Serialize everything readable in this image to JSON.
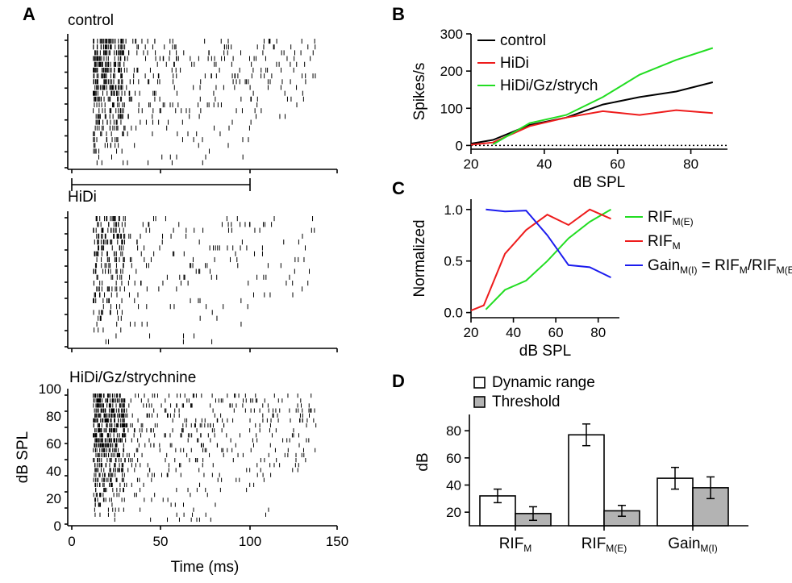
{
  "figure": {
    "panels": {
      "A": {
        "letter": "A"
      },
      "B": {
        "letter": "B"
      },
      "C": {
        "letter": "C"
      },
      "D": {
        "letter": "D"
      }
    },
    "rasters": {
      "control": {
        "label": "control"
      },
      "hidi": {
        "label": "HiDi"
      },
      "strych": {
        "label": "HiDi/Gz/strychnine"
      },
      "ylabel": "dB SPL",
      "xlabel": "Time (ms)",
      "yticks": [
        "100",
        "80",
        "60",
        "40",
        "20",
        "0"
      ],
      "xticks": [
        "0",
        "50",
        "100",
        "150"
      ]
    }
  },
  "chart_data": [
    {
      "id": "B",
      "type": "line",
      "title": "",
      "xlabel": "dB SPL",
      "ylabel": "Spikes/s",
      "xlim": [
        20,
        90
      ],
      "ylim": [
        -10,
        300
      ],
      "xticks": [
        20,
        40,
        60,
        80
      ],
      "yticks": [
        0,
        100,
        200,
        300
      ],
      "series": [
        {
          "name": "control",
          "color": "#000000",
          "x": [
            20,
            26,
            36,
            46,
            56,
            66,
            76,
            86
          ],
          "y": [
            5,
            15,
            55,
            75,
            110,
            130,
            145,
            170
          ]
        },
        {
          "name": "HiDi",
          "color": "#ee1c1c",
          "x": [
            20,
            26,
            36,
            46,
            56,
            66,
            76,
            86
          ],
          "y": [
            2,
            8,
            52,
            75,
            92,
            82,
            95,
            87
          ]
        },
        {
          "name": "HiDi/Gz/strych",
          "color": "#22dd22",
          "x": [
            26,
            36,
            46,
            56,
            66,
            76,
            86
          ],
          "y": [
            3,
            60,
            82,
            130,
            190,
            230,
            262
          ]
        }
      ],
      "reference_line": {
        "y": 0,
        "style": "dotted"
      }
    },
    {
      "id": "C",
      "type": "line",
      "title": "",
      "xlabel": "dB SPL",
      "ylabel": "Normalized",
      "xlim": [
        20,
        90
      ],
      "ylim": [
        -0.05,
        1.1
      ],
      "xticks": [
        20,
        40,
        60,
        80
      ],
      "yticks": [
        "0.0",
        "0.5",
        "1.0"
      ],
      "series": [
        {
          "name": "RIF",
          "sub": "M(E)",
          "color": "#22dd22",
          "x": [
            27,
            36,
            46,
            56,
            66,
            76,
            86
          ],
          "y": [
            0.03,
            0.22,
            0.31,
            0.5,
            0.72,
            0.88,
            1.0
          ]
        },
        {
          "name": "RIF",
          "sub": "M",
          "color": "#ee1c1c",
          "x": [
            20,
            26,
            36,
            46,
            56,
            66,
            76,
            86
          ],
          "y": [
            0.02,
            0.07,
            0.57,
            0.8,
            0.95,
            0.85,
            1.0,
            0.91
          ]
        },
        {
          "name": "Gain",
          "sub": "M(I)",
          "color": "#1c1cee",
          "x": [
            27,
            36,
            46,
            56,
            66,
            76,
            86
          ],
          "y": [
            1.0,
            0.98,
            0.99,
            0.75,
            0.46,
            0.44,
            0.34
          ]
        }
      ],
      "legend_extra": {
        "eq": " = RIF",
        "sub1": "M",
        "slash": "/RIF",
        "sub2": "M(E)"
      }
    },
    {
      "id": "D",
      "type": "bar",
      "title": "",
      "xlabel": "",
      "ylabel": "dB",
      "ylim": [
        10,
        92
      ],
      "yticks": [
        20,
        40,
        60,
        80
      ],
      "categories": [
        {
          "name": "RIF",
          "sub": "M"
        },
        {
          "name": "RIF",
          "sub": "M(E)"
        },
        {
          "name": "Gain",
          "sub": "M(I)"
        }
      ],
      "series": [
        {
          "name": "Dynamic range",
          "color": "#ffffff",
          "values": [
            32,
            77,
            45
          ],
          "errors": [
            5,
            8,
            8
          ]
        },
        {
          "name": "Threshold",
          "color": "#b3b3b3",
          "values": [
            19,
            21,
            38
          ],
          "errors": [
            5,
            4,
            8
          ]
        }
      ]
    }
  ]
}
